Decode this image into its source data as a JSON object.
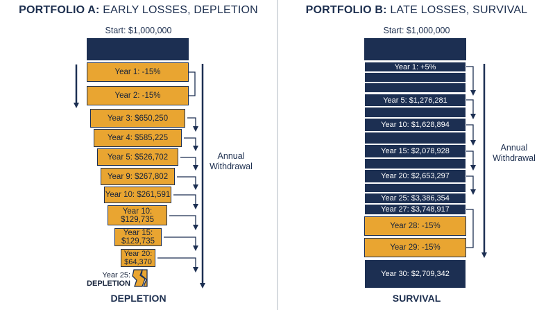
{
  "colors": {
    "navy": "#1c2f52",
    "gold": "#e9a531",
    "divider": "#d7dbe0"
  },
  "portfolio_a": {
    "title_strong": "PORTFOLIO A:",
    "title_rest": "EARLY LOSSES, DEPLETION",
    "start": "Start: $1,000,000",
    "boxes": [
      "Year 1: -15%",
      "Year 2: -15%",
      "Year 3: $650,250",
      "Year 4: $585,225",
      "Year 5: $526,702",
      "Year 9: $267,802",
      "Year 10: $261,591",
      "Year 10:\n$129,735",
      "Year 15:\n$129,735",
      "Year 20:\n$64,370"
    ],
    "depletion_year": "Year 25:",
    "depletion_word": "DEPLETION",
    "annual_label": "Annual\nWithdrawal",
    "footer": "DEPLETION"
  },
  "portfolio_b": {
    "title_strong": "PORTFOLIO B:",
    "title_rest": "LATE LOSSES, SURVIVAL",
    "start": "Start: $1,000,000",
    "bars": [
      "Year 1: +5%",
      "",
      "",
      "Year 5: $1,276,281",
      "",
      "Year 10: $1,628,894",
      "",
      "Year 15: $2,078,928",
      "",
      "Year 20: $2,653,297",
      "",
      "Year 25: $3,386,354",
      "Year 27: $3,748,917",
      "Year 28: -15%",
      "Year 29: -15%",
      "Year 30: $2,709,342"
    ],
    "annual_label": "Annual\nWithdrawal",
    "footer": "SURVIVAL"
  }
}
